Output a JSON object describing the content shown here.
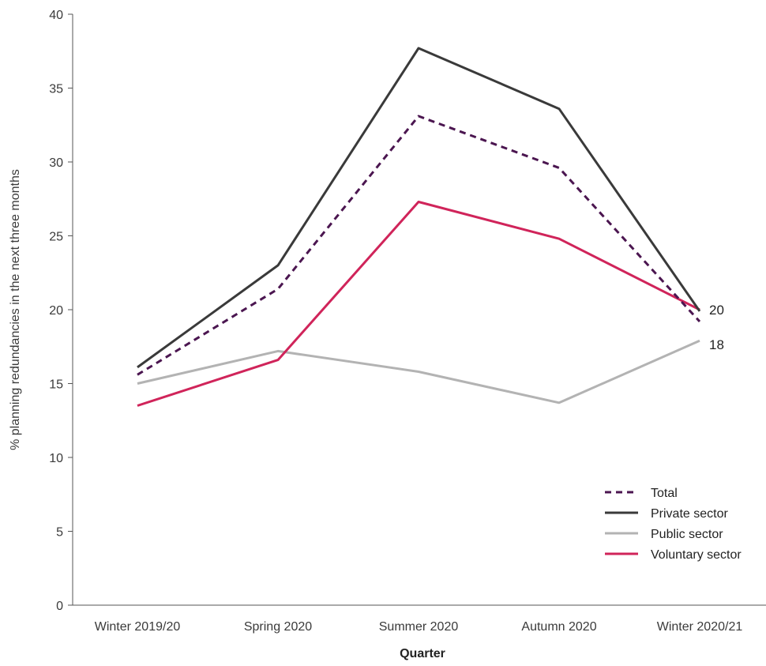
{
  "chart_data": {
    "type": "line",
    "categories": [
      "Winter 2019/20",
      "Spring 2020",
      "Summer 2020",
      "Autumn 2020",
      "Winter 2020/21"
    ],
    "series": [
      {
        "name": "Total",
        "values": [
          15.6,
          21.4,
          33.1,
          29.6,
          19.2
        ],
        "color": "#4b1650",
        "dashed": true
      },
      {
        "name": "Private sector",
        "values": [
          16.1,
          23.0,
          37.7,
          33.6,
          19.9
        ],
        "color": "#3a3a3a",
        "dashed": false
      },
      {
        "name": "Public sector",
        "values": [
          15.0,
          17.2,
          15.8,
          13.7,
          17.9
        ],
        "color": "#b3b3b3",
        "dashed": false
      },
      {
        "name": "Voluntary sector",
        "values": [
          13.5,
          16.6,
          27.3,
          24.8,
          20.0
        ],
        "color": "#d0245a",
        "dashed": false
      }
    ],
    "end_labels": [
      "20",
      "18"
    ],
    "xlabel": "Quarter",
    "ylabel": "% planning redundancies in the next three months",
    "ylim": [
      0,
      40
    ],
    "yticks": [
      0,
      5,
      10,
      15,
      20,
      25,
      30,
      35,
      40
    ],
    "grid": false,
    "legend_position": "bottom-right"
  }
}
